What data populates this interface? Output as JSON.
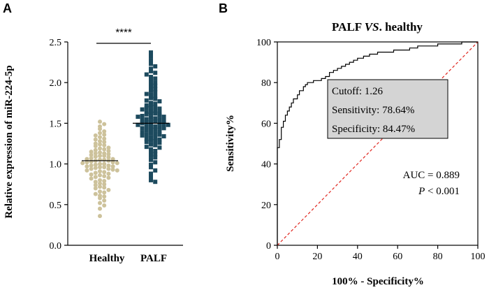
{
  "panels": {
    "a_label": "A",
    "b_label": "B"
  },
  "chart_data": [
    {
      "type": "scatter",
      "panel": "A",
      "ylabel": "Relative expression of miR-224-5p",
      "ylim": [
        0.0,
        2.5
      ],
      "yticks": [
        "0.0",
        "0.5",
        "1.0",
        "1.5",
        "2.0",
        "2.5"
      ],
      "categories": [
        "Healthy",
        "PALF"
      ],
      "significance": "****",
      "colors": {
        "Healthy": "#cdc29b",
        "PALF": "#1d4a5e"
      },
      "groups": [
        {
          "name": "Healthy",
          "mean": 1.04,
          "values": [
            1.52,
            1.49,
            1.46,
            1.43,
            1.4,
            1.38,
            1.36,
            1.35,
            1.33,
            1.31,
            1.3,
            1.28,
            1.27,
            1.25,
            1.24,
            1.23,
            1.22,
            1.2,
            1.19,
            1.18,
            1.17,
            1.16,
            1.15,
            1.14,
            1.13,
            1.12,
            1.11,
            1.1,
            1.09,
            1.08,
            1.07,
            1.06,
            1.06,
            1.05,
            1.04,
            1.04,
            1.03,
            1.02,
            1.02,
            1.01,
            1.0,
            1.0,
            0.99,
            0.98,
            0.98,
            0.97,
            0.96,
            0.96,
            0.95,
            0.94,
            0.94,
            0.93,
            0.92,
            0.91,
            0.9,
            0.89,
            0.88,
            0.87,
            0.86,
            0.85,
            0.84,
            0.83,
            0.82,
            0.8,
            0.79,
            0.78,
            0.76,
            0.75,
            0.74,
            0.72,
            0.71,
            0.7,
            0.68,
            0.66,
            0.65,
            0.63,
            0.61,
            0.6,
            0.58,
            0.55,
            0.52,
            0.49,
            0.45,
            0.36,
            1.1,
            1.05,
            0.97,
            1.01,
            1.13,
            0.92
          ]
        },
        {
          "name": "PALF",
          "mean": 1.5,
          "values": [
            2.37,
            2.32,
            2.27,
            2.23,
            2.2,
            2.17,
            2.14,
            2.12,
            2.1,
            2.07,
            2.05,
            2.03,
            2.0,
            1.98,
            1.96,
            1.94,
            1.92,
            1.9,
            1.88,
            1.86,
            1.85,
            1.83,
            1.81,
            1.8,
            1.78,
            1.77,
            1.75,
            1.74,
            1.72,
            1.71,
            1.7,
            1.69,
            1.67,
            1.66,
            1.65,
            1.64,
            1.63,
            1.62,
            1.61,
            1.6,
            1.59,
            1.58,
            1.57,
            1.56,
            1.55,
            1.54,
            1.53,
            1.52,
            1.51,
            1.5,
            1.5,
            1.49,
            1.48,
            1.47,
            1.46,
            1.45,
            1.44,
            1.43,
            1.42,
            1.41,
            1.4,
            1.39,
            1.38,
            1.37,
            1.36,
            1.35,
            1.34,
            1.33,
            1.32,
            1.31,
            1.3,
            1.29,
            1.28,
            1.27,
            1.26,
            1.24,
            1.23,
            1.21,
            1.2,
            1.18,
            1.16,
            1.14,
            1.12,
            1.1,
            1.08,
            1.05,
            1.02,
            0.99,
            0.96,
            0.92,
            0.88,
            0.84,
            0.8,
            0.78,
            1.55,
            1.48,
            1.62,
            1.44,
            1.52,
            1.58,
            1.46,
            1.36,
            1.68
          ]
        }
      ]
    },
    {
      "type": "line",
      "panel": "B",
      "title": "PALF VS. healthy",
      "title_parts": {
        "pre": "PALF ",
        "italic": "VS",
        "post": ". healthy"
      },
      "xlabel": "100% - Specificity%",
      "ylabel": "Sensitivity%",
      "xlim": [
        0,
        100
      ],
      "ylim": [
        0,
        100
      ],
      "xticks": [
        "0",
        "20",
        "40",
        "60",
        "80",
        "100"
      ],
      "yticks": [
        "0",
        "20",
        "40",
        "60",
        "80",
        "100"
      ],
      "reference_line_color": "#e0261f",
      "box": {
        "cutoff": "Cutoff: 1.26",
        "sensitivity": "Sensitivity: 78.64%",
        "specificity": "Specificity: 84.47%"
      },
      "auc_text": "AUC = 0.889",
      "p_text_italic": "P",
      "p_text_rest": " < 0.001",
      "series": [
        {
          "x": [
            0,
            0,
            1,
            1,
            2,
            2,
            3,
            3,
            4,
            4,
            5,
            5,
            6,
            6,
            7,
            7,
            8,
            8,
            10,
            10,
            11,
            11,
            13,
            13,
            14,
            14,
            15,
            15,
            18,
            18,
            20,
            20,
            22,
            22,
            24,
            24,
            26,
            26,
            28,
            28,
            30,
            30,
            32,
            32,
            34,
            34,
            36,
            36,
            38,
            38,
            40,
            40,
            43,
            43,
            46,
            46,
            50,
            50,
            54,
            54,
            58,
            58,
            62,
            62,
            66,
            66,
            70,
            70,
            75,
            75,
            80,
            80,
            86,
            86,
            92,
            92,
            100
          ],
          "y": [
            0,
            48,
            48,
            52,
            52,
            58,
            58,
            61,
            61,
            64,
            64,
            66,
            66,
            68,
            68,
            70,
            70,
            72,
            72,
            74,
            74,
            76,
            76,
            78,
            78,
            79,
            79,
            80,
            80,
            81,
            81,
            81,
            81,
            82,
            82,
            83,
            83,
            85,
            85,
            86,
            86,
            87,
            87,
            88,
            88,
            89,
            89,
            90,
            90,
            91,
            91,
            92,
            92,
            93,
            93,
            94,
            94,
            95,
            95,
            95,
            95,
            96,
            96,
            96,
            96,
            97,
            97,
            98,
            98,
            98,
            98,
            99,
            99,
            99,
            99,
            100,
            100
          ]
        }
      ]
    }
  ]
}
